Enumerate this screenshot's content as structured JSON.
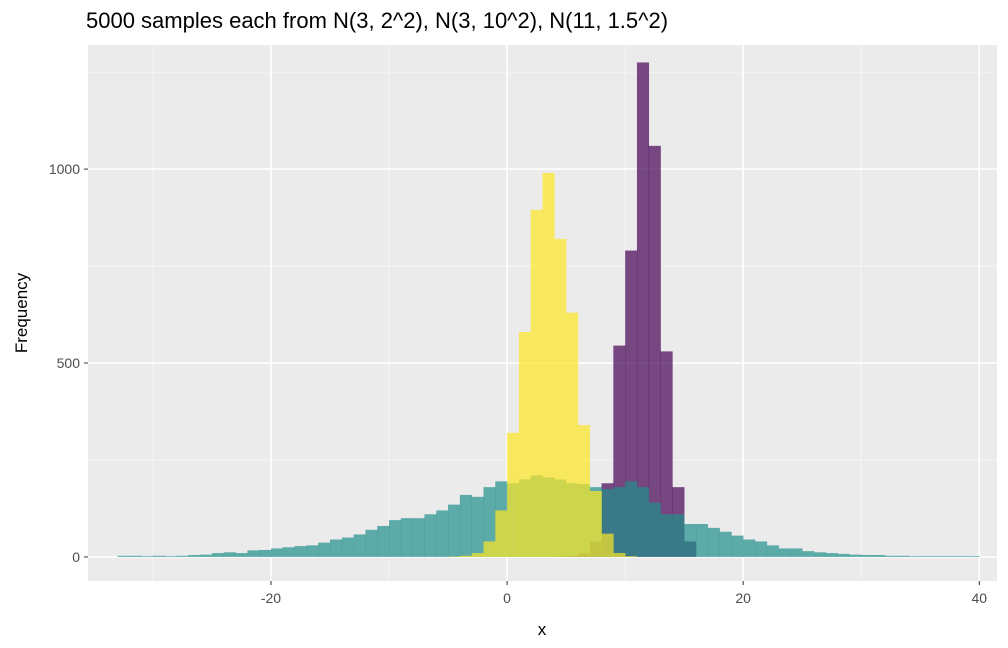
{
  "chart_data": {
    "type": "bar",
    "title": "5000 samples each from N(3, 2^2), N(3, 10^2), N(11, 1.5^2)",
    "xlabel": "x",
    "ylabel": "Frequency",
    "xlim": [
      -35.5,
      41.5
    ],
    "ylim": [
      -62,
      1320
    ],
    "x_ticks": [
      -20,
      0,
      20,
      40
    ],
    "y_ticks": [
      0,
      500,
      1000
    ],
    "grid": true,
    "legend": "none",
    "bin_width": 1,
    "series": [
      {
        "color": "#440154",
        "opacity": 0.7,
        "bins_x0": [
          4,
          5,
          6,
          7,
          8,
          9,
          10,
          11,
          12,
          13,
          14,
          15
        ],
        "values": [
          1,
          3,
          10,
          40,
          190,
          545,
          790,
          1275,
          1060,
          530,
          180,
          40
        ]
      },
      {
        "color": "#21908C",
        "opacity": 0.7,
        "bins_x0": [
          -33,
          -32,
          -31,
          -30,
          -29,
          -28,
          -27,
          -26,
          -25,
          -24,
          -23,
          -22,
          -21,
          -20,
          -19,
          -18,
          -17,
          -16,
          -15,
          -14,
          -13,
          -12,
          -11,
          -10,
          -9,
          -8,
          -7,
          -6,
          -5,
          -4,
          -3,
          -2,
          -1,
          0,
          1,
          2,
          3,
          4,
          5,
          6,
          7,
          8,
          9,
          10,
          11,
          12,
          13,
          14,
          15,
          16,
          17,
          18,
          19,
          20,
          21,
          22,
          23,
          24,
          25,
          26,
          27,
          28,
          29,
          30,
          31,
          32,
          33,
          34,
          35,
          36,
          37,
          38,
          39
        ],
        "values": [
          3,
          3,
          2,
          3,
          2,
          3,
          5,
          6,
          10,
          12,
          10,
          17,
          18,
          22,
          25,
          28,
          30,
          37,
          45,
          50,
          58,
          70,
          80,
          95,
          100,
          100,
          110,
          120,
          135,
          160,
          155,
          180,
          195,
          190,
          200,
          210,
          205,
          200,
          190,
          188,
          180,
          175,
          180,
          195,
          180,
          140,
          110,
          110,
          85,
          85,
          75,
          65,
          55,
          45,
          40,
          30,
          22,
          22,
          15,
          12,
          10,
          8,
          6,
          5,
          5,
          3,
          3,
          2,
          2,
          2,
          2,
          2,
          2
        ]
      },
      {
        "color": "#FDE725",
        "opacity": 0.7,
        "bins_x0": [
          -5,
          -4,
          -3,
          -2,
          -1,
          0,
          1,
          2,
          3,
          4,
          5,
          6,
          7,
          8,
          9,
          10
        ],
        "values": [
          1,
          3,
          10,
          40,
          120,
          320,
          580,
          895,
          990,
          820,
          630,
          340,
          170,
          60,
          10,
          2
        ]
      }
    ]
  }
}
